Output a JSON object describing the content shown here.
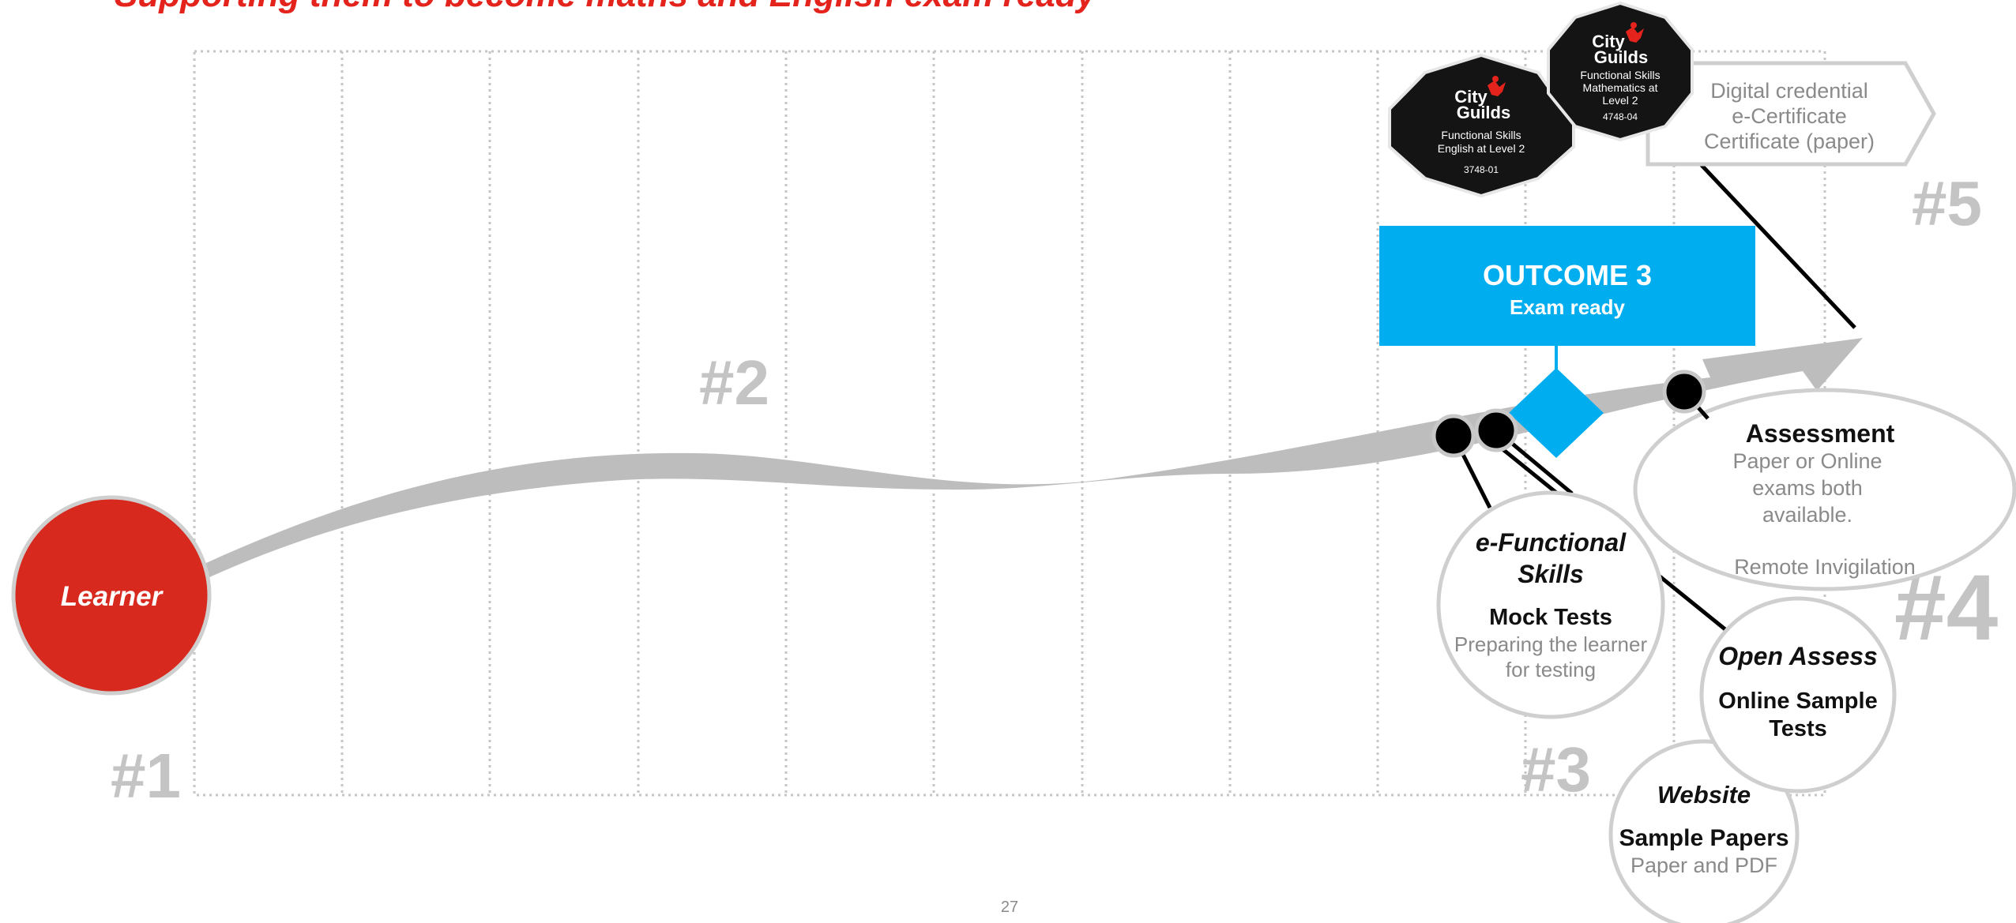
{
  "page": {
    "title": "Supporting them to become maths and English exam ready",
    "page_number": "27"
  },
  "colors": {
    "title_red": "#e3231c",
    "learner_red": "#d8291e",
    "outcome_blue": "#00adef",
    "arrow_grey": "#bdbdbd",
    "marker_grey": "#c8c8c8",
    "circle_border": "#cfcfcf",
    "body_grey": "#8a8a8a",
    "badge_black": "#141414"
  },
  "steps": {
    "step1": "#1",
    "step2": "#2",
    "step3": "#3",
    "step4": "#4",
    "step5": "#5"
  },
  "learner": {
    "label": "Learner"
  },
  "outcome": {
    "title": "OUTCOME 3",
    "subtitle": "Exam ready"
  },
  "efs": {
    "title_line1": "e-Functional",
    "title_line2": "Skills",
    "heading": "Mock Tests",
    "desc_line1": "Preparing the learner",
    "desc_line2": "for testing"
  },
  "open_assess": {
    "title": "Open Assess",
    "line1": "Online Sample",
    "line2": "Tests"
  },
  "website": {
    "title": "Website",
    "heading": "Sample Papers",
    "desc": "Paper and PDF"
  },
  "assessment": {
    "heading": "Assessment",
    "line1": "Paper or Online",
    "line2": "exams both",
    "line3": "available.",
    "line4": "Remote Invigilation"
  },
  "credential": {
    "line1": "Digital credential",
    "line2": "e-Certificate",
    "line3": "Certificate (paper)"
  },
  "badges": [
    {
      "icon": "city-and-guilds-logo",
      "logo_line1": "City",
      "logo_line2": "Guilds",
      "line1": "Functional Skills",
      "line2": "English at Level 2",
      "code": "3748-01"
    },
    {
      "icon": "city-and-guilds-logo",
      "logo_line1": "City",
      "logo_line2": "Guilds",
      "line1": "Functional Skills",
      "line2": "Mathematics at",
      "line3": "Level 2",
      "code": "4748-04"
    }
  ]
}
